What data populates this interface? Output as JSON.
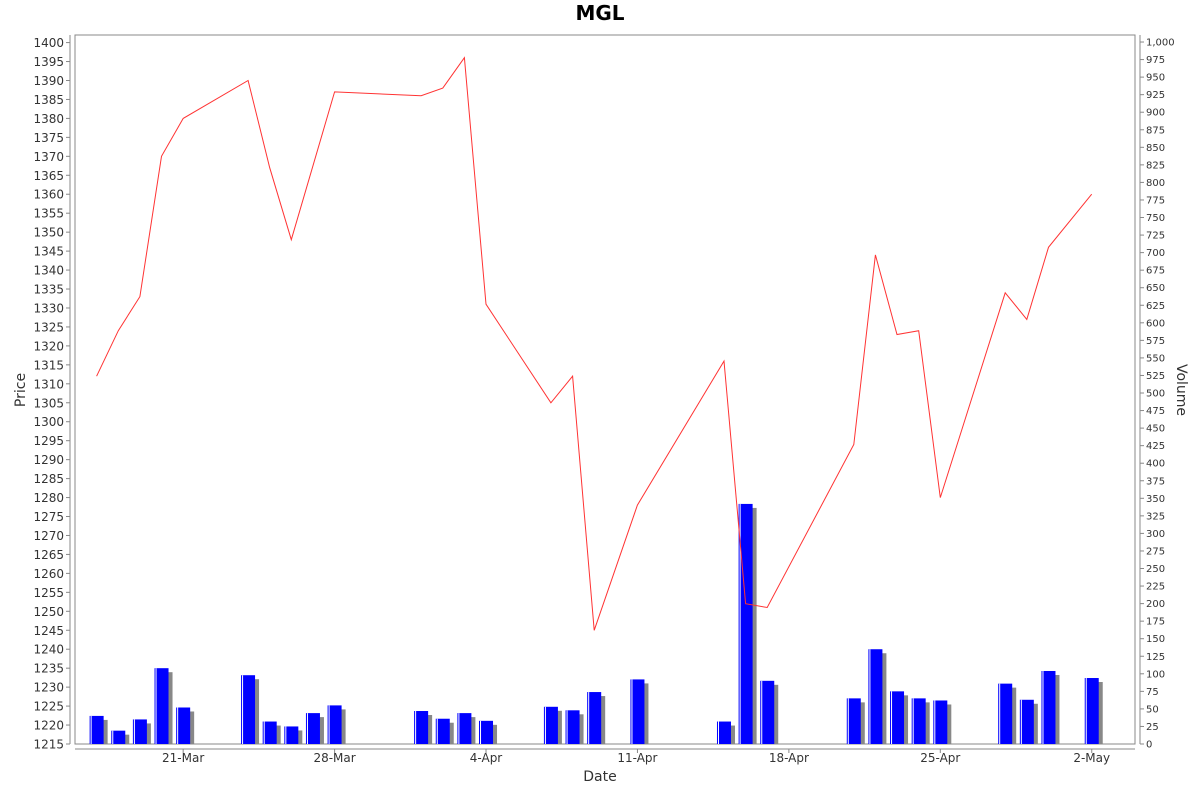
{
  "chart_data": {
    "type": "line",
    "title": "MGL",
    "xlabel": "Date",
    "ylabel": "Price",
    "y2label": "Volume",
    "ylim": [
      1215,
      1402
    ],
    "y2lim": [
      0,
      1010
    ],
    "x_ticks": [
      "21-Mar",
      "28-Mar",
      "4-Apr",
      "11-Apr",
      "18-Apr",
      "25-Apr",
      "2-May"
    ],
    "y_ticks": [
      1215,
      1220,
      1225,
      1230,
      1235,
      1240,
      1245,
      1250,
      1255,
      1260,
      1265,
      1270,
      1275,
      1280,
      1285,
      1290,
      1295,
      1300,
      1305,
      1310,
      1315,
      1320,
      1325,
      1330,
      1335,
      1340,
      1345,
      1350,
      1355,
      1360,
      1365,
      1370,
      1375,
      1380,
      1385,
      1390,
      1395,
      1400
    ],
    "y2_ticks": [
      "0",
      "25",
      "50",
      "75",
      "100",
      "125",
      "150",
      "175",
      "200",
      "225",
      "250",
      "275",
      "300",
      "325",
      "350",
      "375",
      "400",
      "425",
      "450",
      "475",
      "500",
      "525",
      "550",
      "575",
      "600",
      "625",
      "650",
      "675",
      "700",
      "725",
      "750",
      "775",
      "800",
      "825",
      "850",
      "875",
      "900",
      "925",
      "950",
      "975",
      "1,000"
    ],
    "grid": false,
    "series": [
      {
        "kind": "line",
        "color": "#ff3333",
        "points": [
          {
            "date": "2022-03-17",
            "value": 1312
          },
          {
            "date": "2022-03-18",
            "value": 1324
          },
          {
            "date": "2022-03-19",
            "value": 1333
          },
          {
            "date": "2022-03-20",
            "value": 1370
          },
          {
            "date": "2022-03-21",
            "value": 1380
          },
          {
            "date": "2022-03-24",
            "value": 1390
          },
          {
            "date": "2022-03-25",
            "value": 1367
          },
          {
            "date": "2022-03-26",
            "value": 1348
          },
          {
            "date": "2022-03-28",
            "value": 1387
          },
          {
            "date": "2022-04-01",
            "value": 1386
          },
          {
            "date": "2022-04-02",
            "value": 1388
          },
          {
            "date": "2022-04-03",
            "value": 1396
          },
          {
            "date": "2022-04-04",
            "value": 1331
          },
          {
            "date": "2022-04-07",
            "value": 1305
          },
          {
            "date": "2022-04-08",
            "value": 1312
          },
          {
            "date": "2022-04-09",
            "value": 1245
          },
          {
            "date": "2022-04-11",
            "value": 1278
          },
          {
            "date": "2022-04-15",
            "value": 1316
          },
          {
            "date": "2022-04-16",
            "value": 1252
          },
          {
            "date": "2022-04-17",
            "value": 1251
          },
          {
            "date": "2022-04-21",
            "value": 1294
          },
          {
            "date": "2022-04-22",
            "value": 1344
          },
          {
            "date": "2022-04-23",
            "value": 1323
          },
          {
            "date": "2022-04-24",
            "value": 1324
          },
          {
            "date": "2022-04-25",
            "value": 1280
          },
          {
            "date": "2022-04-28",
            "value": 1334
          },
          {
            "date": "2022-04-29",
            "value": 1327
          },
          {
            "date": "2022-04-30",
            "value": 1346
          },
          {
            "date": "2022-05-02",
            "value": 1360
          }
        ]
      },
      {
        "kind": "bar",
        "axis": "right",
        "color": "#0000ff",
        "shadow_color": "#888888",
        "points": [
          {
            "date": "2022-03-17",
            "value": 40
          },
          {
            "date": "2022-03-18",
            "value": 19
          },
          {
            "date": "2022-03-19",
            "value": 35
          },
          {
            "date": "2022-03-20",
            "value": 108
          },
          {
            "date": "2022-03-21",
            "value": 52
          },
          {
            "date": "2022-03-24",
            "value": 98
          },
          {
            "date": "2022-03-25",
            "value": 32
          },
          {
            "date": "2022-03-26",
            "value": 25
          },
          {
            "date": "2022-03-27",
            "value": 44
          },
          {
            "date": "2022-03-28",
            "value": 55
          },
          {
            "date": "2022-04-01",
            "value": 47
          },
          {
            "date": "2022-04-02",
            "value": 36
          },
          {
            "date": "2022-04-03",
            "value": 44
          },
          {
            "date": "2022-04-04",
            "value": 33
          },
          {
            "date": "2022-04-07",
            "value": 53
          },
          {
            "date": "2022-04-08",
            "value": 48
          },
          {
            "date": "2022-04-09",
            "value": 74
          },
          {
            "date": "2022-04-11",
            "value": 92
          },
          {
            "date": "2022-04-15",
            "value": 32
          },
          {
            "date": "2022-04-16",
            "value": 342
          },
          {
            "date": "2022-04-17",
            "value": 90
          },
          {
            "date": "2022-04-21",
            "value": 65
          },
          {
            "date": "2022-04-22",
            "value": 135
          },
          {
            "date": "2022-04-23",
            "value": 75
          },
          {
            "date": "2022-04-24",
            "value": 65
          },
          {
            "date": "2022-04-25",
            "value": 62
          },
          {
            "date": "2022-04-28",
            "value": 86
          },
          {
            "date": "2022-04-29",
            "value": 63
          },
          {
            "date": "2022-04-30",
            "value": 104
          },
          {
            "date": "2022-05-02",
            "value": 94
          }
        ]
      }
    ]
  }
}
